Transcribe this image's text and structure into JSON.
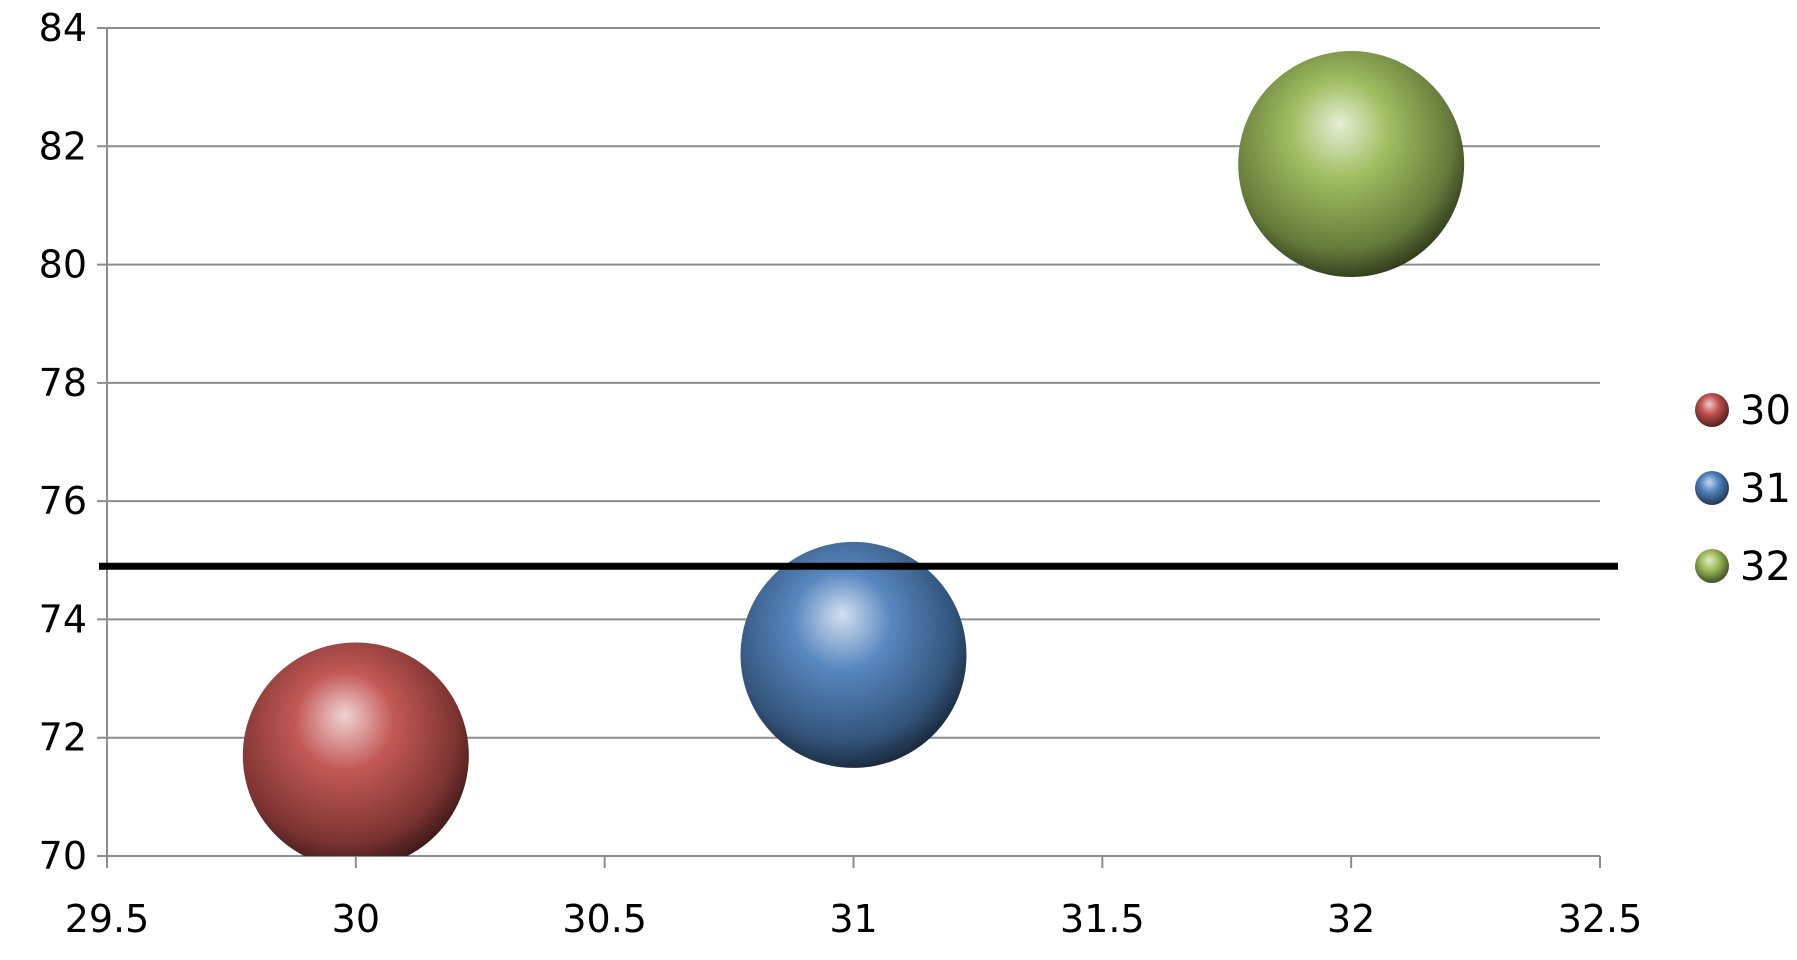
{
  "chart_data": {
    "type": "scatter",
    "title": "",
    "xlabel": "",
    "ylabel": "",
    "xlim": [
      29.5,
      32.5
    ],
    "ylim": [
      70,
      84
    ],
    "x_ticks": [
      "29.5",
      "30",
      "30.5",
      "31",
      "31.5",
      "32",
      "32.5"
    ],
    "y_ticks": [
      "70",
      "72",
      "74",
      "76",
      "78",
      "80",
      "82",
      "84"
    ],
    "grid": true,
    "legend_position": "right",
    "series": [
      {
        "name": "30",
        "x": 30,
        "y": 71.7,
        "color": "#c0504d"
      },
      {
        "name": "31",
        "x": 31,
        "y": 73.4,
        "color": "#4f81bd"
      },
      {
        "name": "32",
        "x": 32,
        "y": 81.7,
        "color": "#9bbb59"
      }
    ],
    "reference_line": {
      "y": 74.9,
      "color": "#000000"
    }
  }
}
